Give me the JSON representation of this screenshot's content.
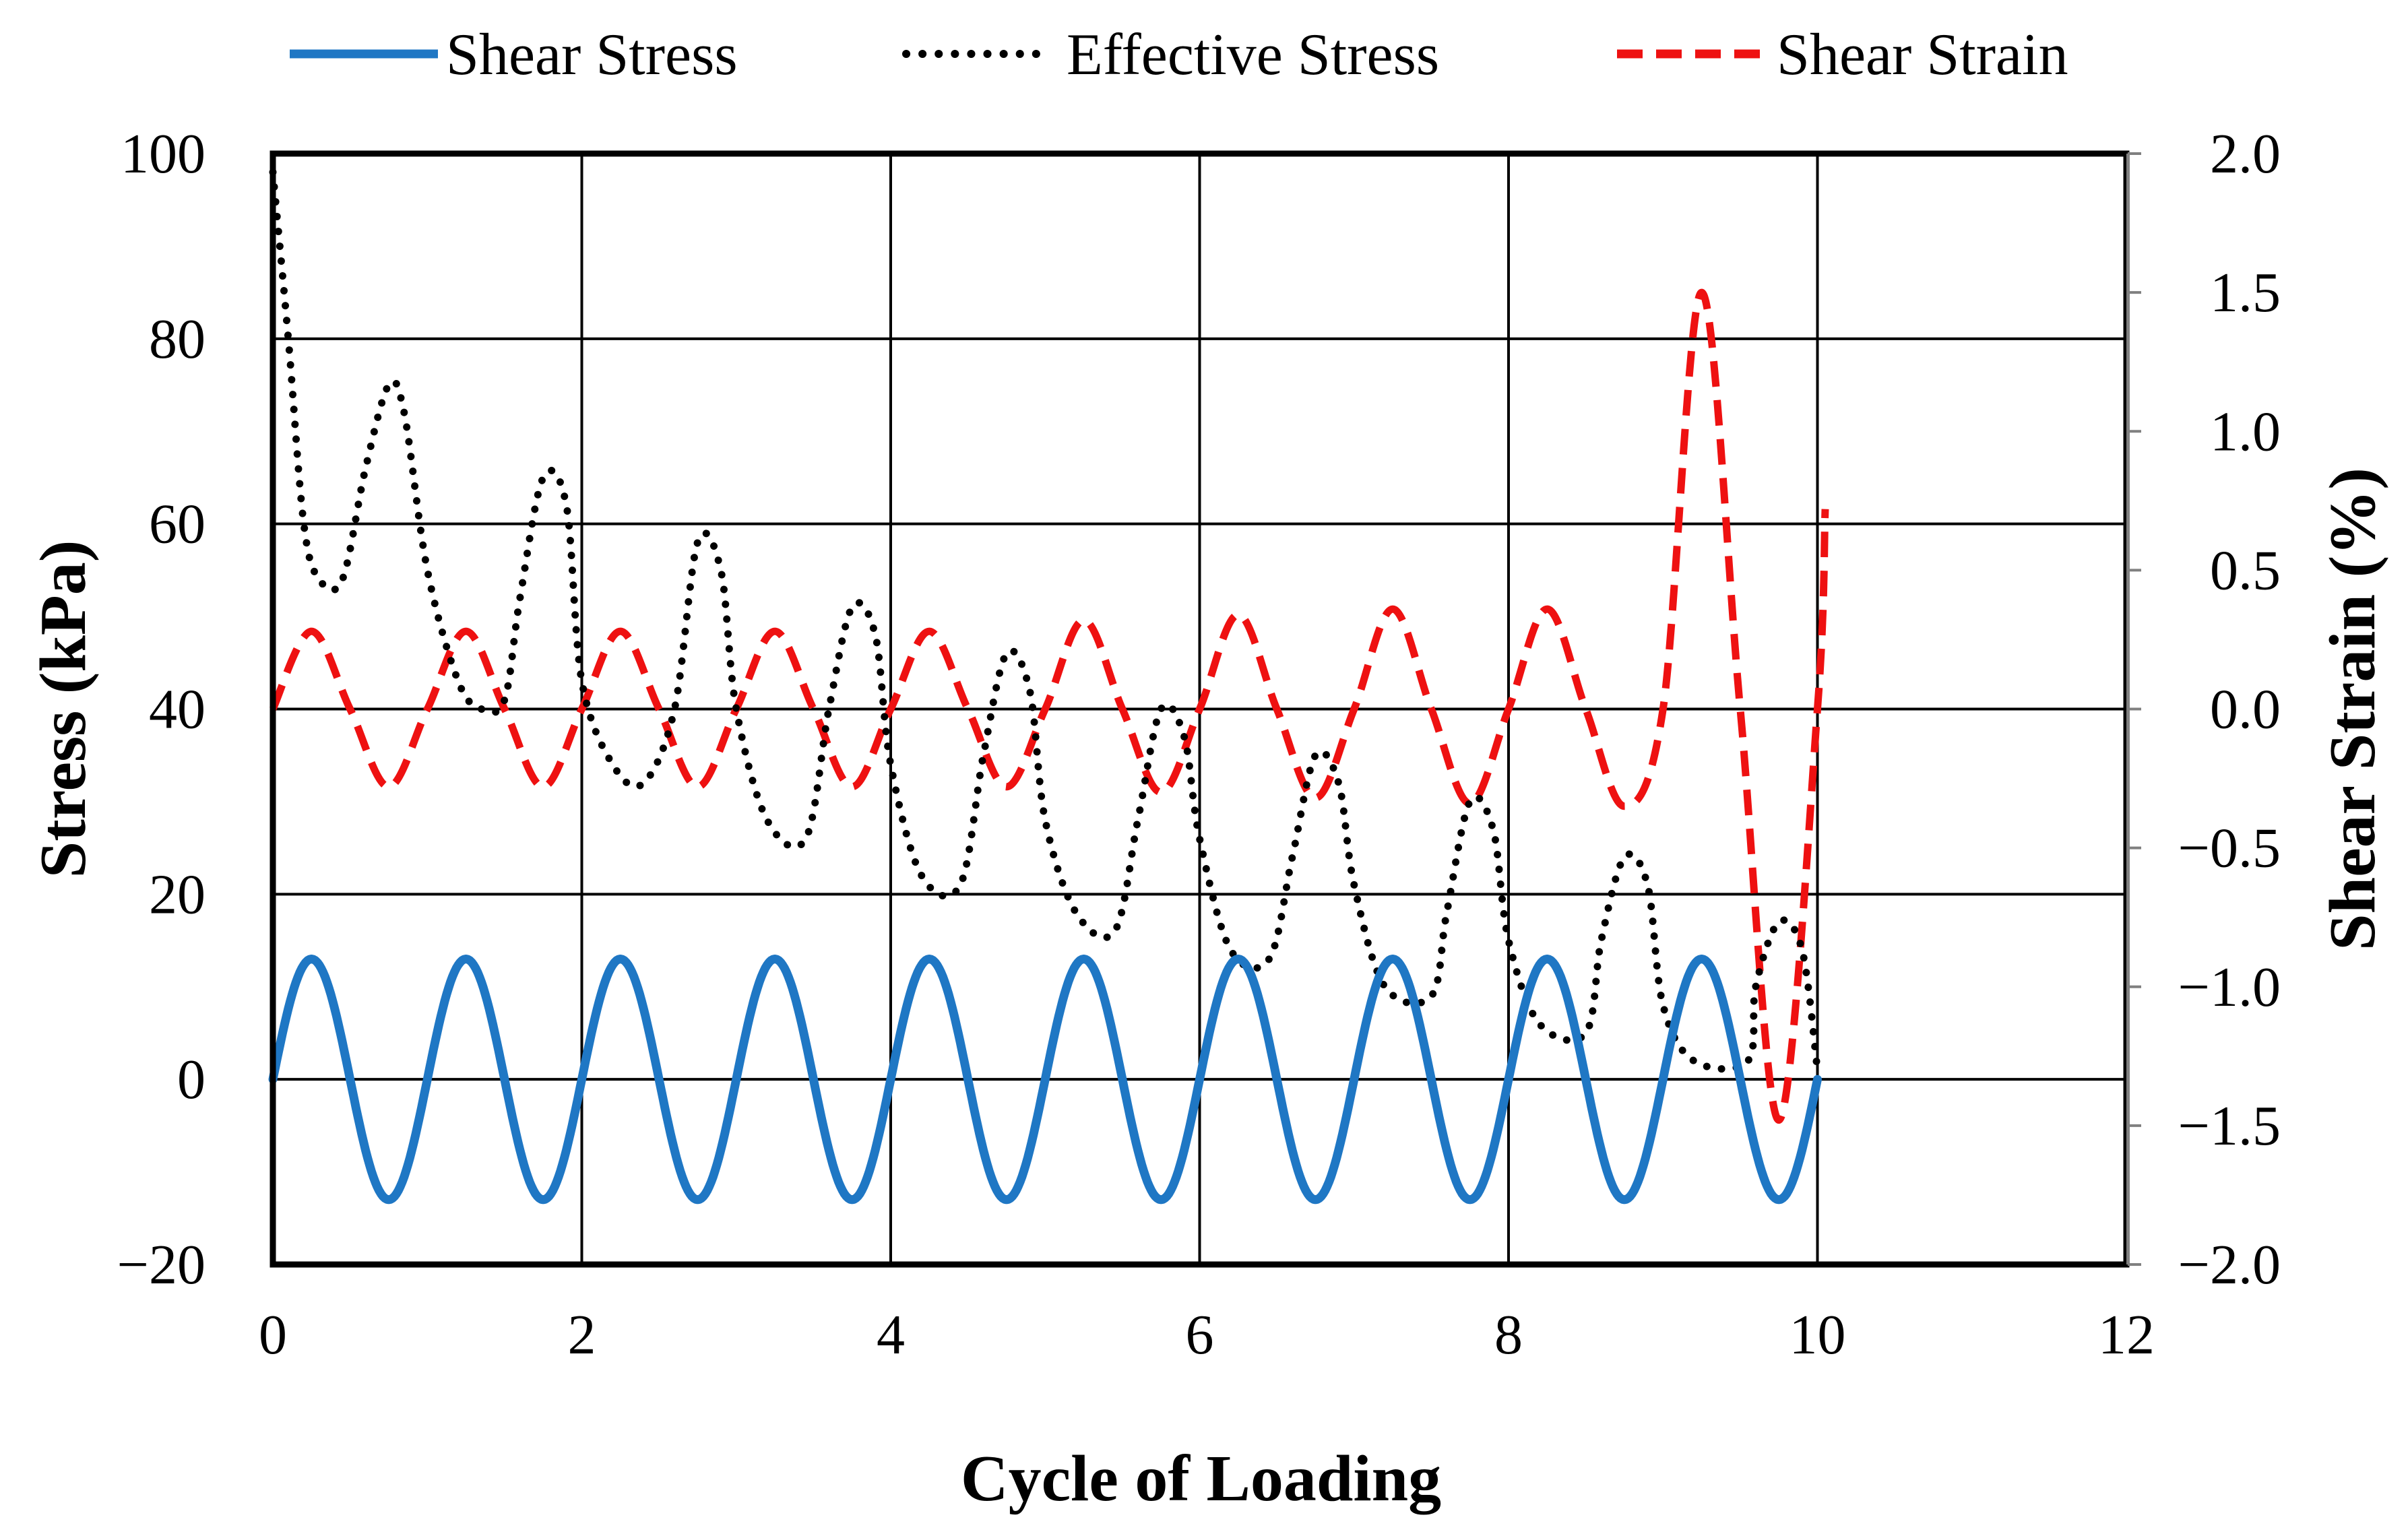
{
  "chart_data": {
    "type": "line",
    "title": "",
    "xlabel": "Cycle of Loading",
    "ylabel": "Stress (kPa)",
    "y2label": "Shear Strain (%)",
    "xlim": [
      0,
      12
    ],
    "ylim": [
      -20,
      100
    ],
    "y2lim": [
      -2.0,
      2.0
    ],
    "x_ticks": [
      "0",
      "2",
      "4",
      "6",
      "8",
      "10",
      "12"
    ],
    "y_ticks": [
      "−20",
      "0",
      "20",
      "40",
      "60",
      "80",
      "100"
    ],
    "y2_ticks": [
      "−2.0",
      "−1.5",
      "−1.0",
      "−0.5",
      "0.0",
      "0.5",
      "1.0",
      "1.5",
      "2.0"
    ],
    "grid": true,
    "legend_position": "top",
    "colors": {
      "shear_stress": "#1f77c4",
      "effective_stress": "#000000",
      "shear_strain": "#ee1111"
    },
    "series": [
      {
        "name": "Shear Stress",
        "axis": "left",
        "style": "solid",
        "amplitude": 13,
        "period": 1,
        "x": [
          0,
          0.25,
          0.5,
          0.75,
          1.0,
          1.25,
          1.5,
          1.75,
          2.0,
          2.25,
          2.5,
          2.75,
          3.0,
          3.25,
          3.5,
          3.75,
          4.0,
          4.25,
          4.5,
          4.75,
          5.0,
          5.25,
          5.5,
          5.75,
          6.0,
          6.25,
          6.5,
          6.75,
          7.0,
          7.25,
          7.5,
          7.75,
          8.0,
          8.25,
          8.5,
          8.75,
          9.0,
          9.25,
          9.5,
          9.75,
          10.0
        ],
        "values": [
          0,
          13,
          0,
          -13,
          0,
          13,
          0,
          -13,
          0,
          13,
          0,
          -13,
          0,
          13,
          0,
          -13,
          0,
          13,
          0,
          -13,
          0,
          13,
          0,
          -13,
          0,
          13,
          0,
          -13,
          0,
          13,
          0,
          -13,
          0,
          13,
          0,
          -13,
          0,
          13,
          0,
          -13,
          0
        ]
      },
      {
        "name": "Effective Stress",
        "axis": "left",
        "style": "dotted",
        "x": [
          0,
          0.1,
          0.2,
          0.3,
          0.45,
          0.6,
          0.75,
          0.85,
          1.0,
          1.2,
          1.35,
          1.5,
          1.6,
          1.75,
          1.9,
          2.0,
          2.2,
          2.4,
          2.6,
          2.75,
          2.9,
          3.0,
          3.2,
          3.45,
          3.6,
          3.75,
          3.9,
          4.0,
          4.2,
          4.45,
          4.6,
          4.75,
          4.9,
          5.0,
          5.2,
          5.45,
          5.6,
          5.75,
          5.9,
          6.0,
          6.2,
          6.45,
          6.6,
          6.75,
          6.9,
          7.0,
          7.2,
          7.5,
          7.6,
          7.75,
          7.9,
          8.0,
          8.2,
          8.5,
          8.6,
          8.75,
          8.9,
          9.0,
          9.2,
          9.55,
          9.6,
          9.75,
          9.9,
          10.0
        ],
        "values": [
          98,
          80,
          60,
          54,
          54,
          66,
          75,
          72,
          55,
          43,
          40,
          41,
          52,
          65,
          62,
          43,
          34,
          32,
          40,
          58,
          55,
          40,
          28,
          26,
          40,
          51,
          48,
          34,
          22,
          21,
          35,
          46,
          42,
          28,
          18,
          16,
          28,
          40,
          37,
          26,
          14,
          13,
          24,
          35,
          32,
          21,
          10,
          9,
          18,
          30,
          27,
          15,
          6,
          5,
          15,
          24,
          21,
          8,
          2,
          2,
          10,
          17,
          14,
          1
        ]
      },
      {
        "name": "Shear Strain",
        "axis": "right",
        "style": "dashed",
        "x": [
          0,
          0.25,
          0.5,
          0.75,
          1.0,
          1.25,
          1.5,
          1.75,
          2.0,
          2.25,
          2.5,
          2.75,
          3.0,
          3.25,
          3.5,
          3.75,
          4.0,
          4.25,
          4.5,
          4.75,
          5.0,
          5.25,
          5.5,
          5.75,
          6.0,
          6.25,
          6.5,
          6.75,
          7.0,
          7.25,
          7.5,
          7.75,
          8.0,
          8.25,
          8.5,
          8.75,
          9.0,
          9.25,
          9.5,
          9.75,
          10.0,
          10.05
        ],
        "values": [
          0,
          0.28,
          0,
          -0.28,
          0,
          0.28,
          0,
          -0.28,
          0,
          0.28,
          0,
          -0.28,
          0,
          0.28,
          0,
          -0.28,
          0,
          0.28,
          0,
          -0.28,
          0,
          0.32,
          0,
          -0.3,
          0,
          0.34,
          0,
          -0.32,
          0,
          0.36,
          0,
          -0.34,
          0,
          0.36,
          0,
          -0.35,
          0,
          1.5,
          0,
          -1.48,
          0,
          0.72
        ]
      }
    ]
  }
}
